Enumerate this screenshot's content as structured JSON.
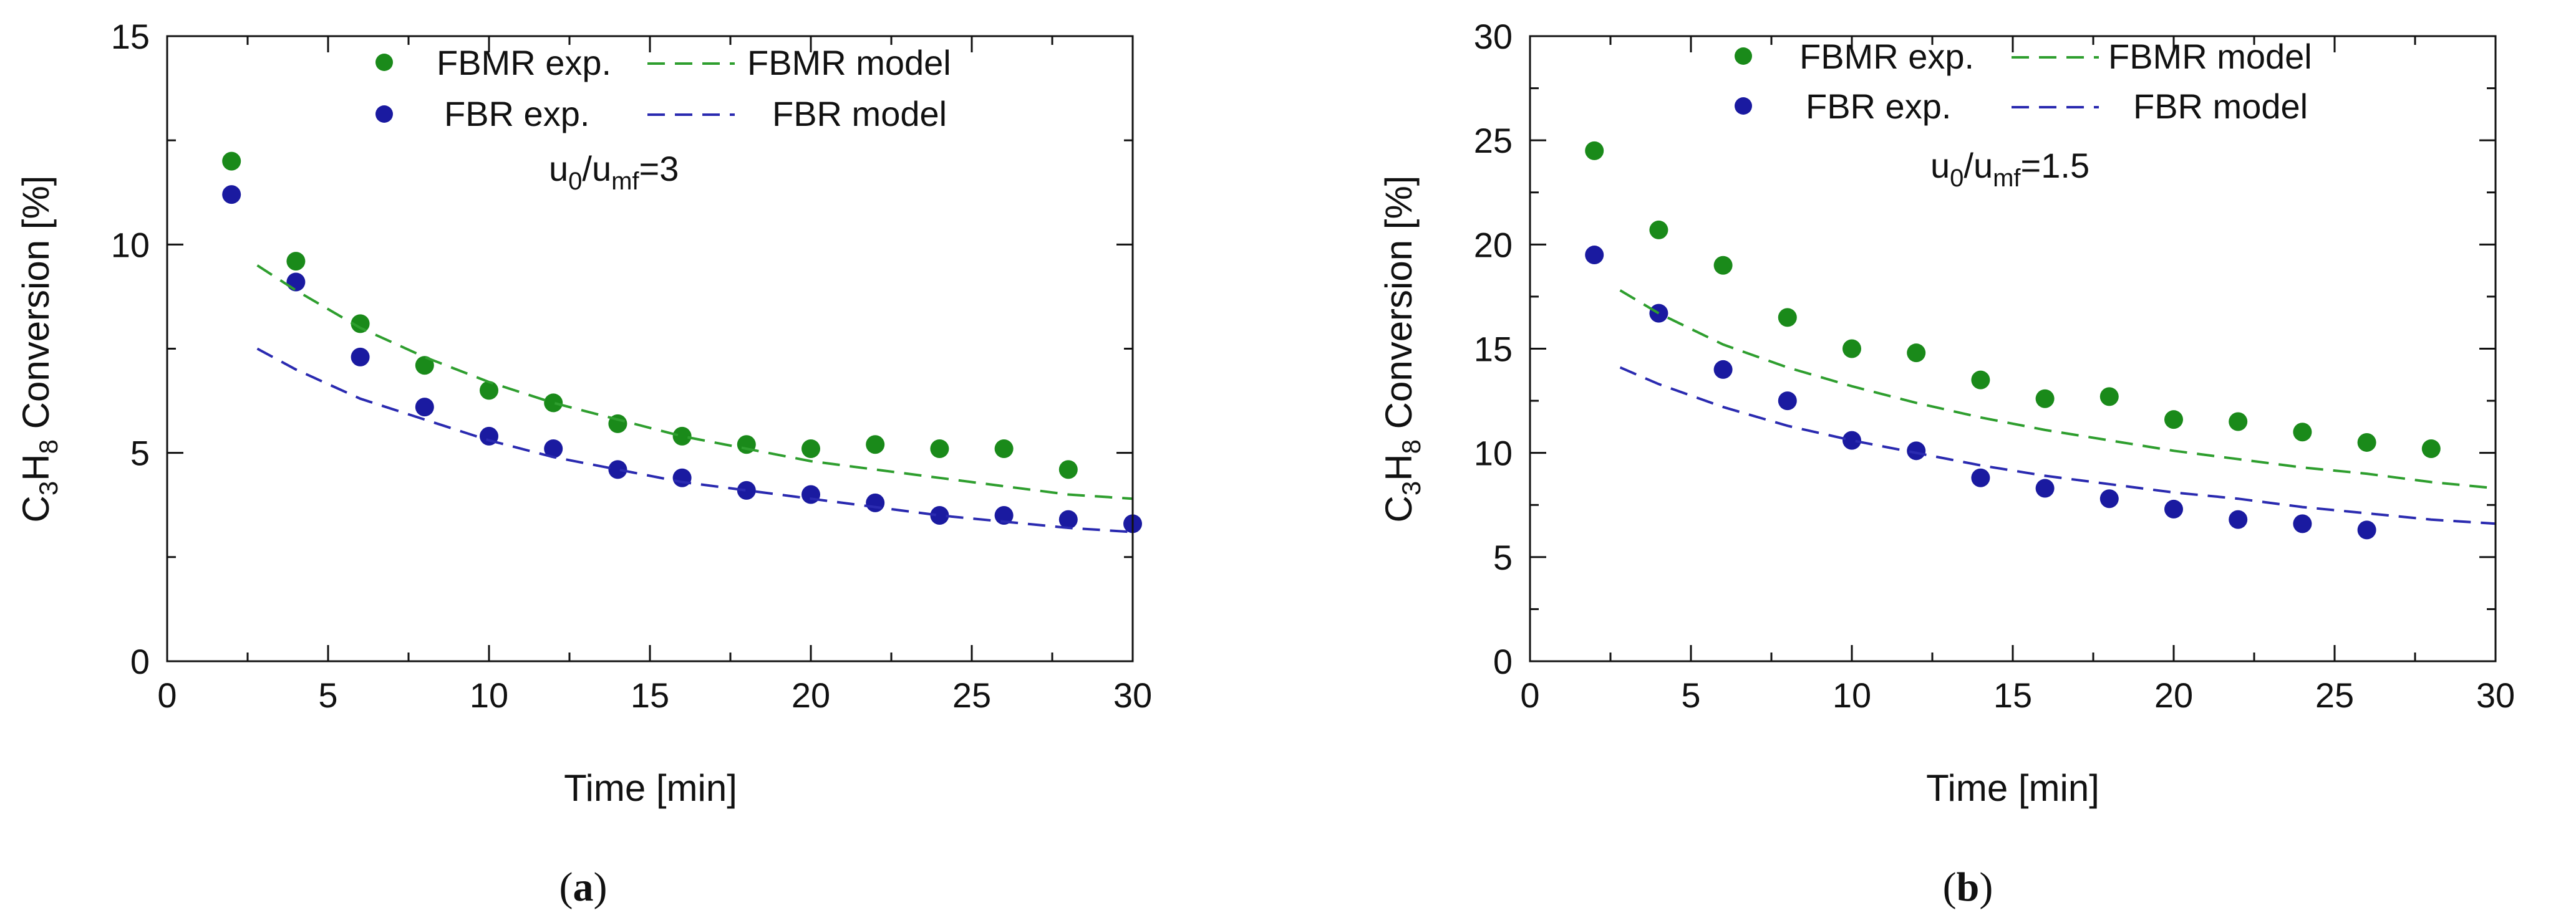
{
  "chart_data": [
    {
      "type": "scatter",
      "panel_label": "a",
      "xlabel": "Time [min]",
      "ylabel": {
        "base": "C",
        "sub1": "3",
        "mid": "H",
        "sub2": "8",
        "tail": " Conversion [%]"
      },
      "xlim": [
        0,
        30
      ],
      "ylim": [
        0,
        15
      ],
      "xticks": [
        0,
        5,
        10,
        15,
        20,
        25,
        30
      ],
      "yticks": [
        0,
        5,
        10,
        15
      ],
      "grid": false,
      "annotation": {
        "u": "u",
        "sub0": "0",
        "slash": "/u",
        "submf": "mf",
        "eq": "=3"
      },
      "legend": {
        "position": "top-center",
        "exp_fbmr": "FBMR exp.",
        "model_fbmr": "FBMR model",
        "exp_fbr": "FBR exp.",
        "model_fbr": "FBR model"
      },
      "series": [
        {
          "name": "FBMR exp.",
          "kind": "points",
          "color": "#1a8a1a",
          "x": [
            2,
            4,
            6,
            8,
            10,
            12,
            14,
            16,
            18,
            20,
            22,
            24,
            26,
            28
          ],
          "y": [
            12.0,
            9.6,
            8.1,
            7.1,
            6.5,
            6.2,
            5.7,
            5.4,
            5.2,
            5.1,
            5.2,
            5.1,
            5.1,
            4.6
          ]
        },
        {
          "name": "FBR exp.",
          "kind": "points",
          "color": "#1a1aa0",
          "x": [
            2,
            4,
            6,
            8,
            10,
            12,
            14,
            16,
            18,
            20,
            22,
            24,
            26,
            28,
            30
          ],
          "y": [
            11.2,
            9.1,
            7.3,
            6.1,
            5.4,
            5.1,
            4.6,
            4.4,
            4.1,
            4.0,
            3.8,
            3.5,
            3.5,
            3.4,
            3.3
          ]
        },
        {
          "name": "FBMR model",
          "kind": "dashed",
          "color": "#2e9e2e",
          "x": [
            2.8,
            4,
            6,
            8,
            10,
            12,
            14,
            16,
            18,
            20,
            22,
            24,
            26,
            28,
            30
          ],
          "y": [
            9.5,
            8.9,
            8.0,
            7.3,
            6.7,
            6.2,
            5.8,
            5.4,
            5.1,
            4.8,
            4.6,
            4.4,
            4.2,
            4.0,
            3.9
          ]
        },
        {
          "name": "FBR model",
          "kind": "dashed",
          "color": "#2a2ab0",
          "x": [
            2.8,
            4,
            6,
            8,
            10,
            12,
            14,
            16,
            18,
            20,
            22,
            24,
            26,
            28,
            30
          ],
          "y": [
            7.5,
            7.0,
            6.3,
            5.8,
            5.3,
            4.9,
            4.6,
            4.3,
            4.1,
            3.9,
            3.7,
            3.5,
            3.35,
            3.2,
            3.1
          ]
        }
      ]
    },
    {
      "type": "scatter",
      "panel_label": "b",
      "xlabel": "Time [min]",
      "ylabel": {
        "base": "C",
        "sub1": "3",
        "mid": "H",
        "sub2": "8",
        "tail": " Conversion [%]"
      },
      "xlim": [
        0,
        30
      ],
      "ylim": [
        0,
        30
      ],
      "xticks": [
        0,
        5,
        10,
        15,
        20,
        25,
        30
      ],
      "yticks": [
        0,
        5,
        10,
        15,
        20,
        25,
        30
      ],
      "grid": false,
      "annotation": {
        "u": "u",
        "sub0": "0",
        "slash": "/u",
        "submf": "mf",
        "eq": "=1.5"
      },
      "legend": {
        "position": "top-center",
        "exp_fbmr": "FBMR exp.",
        "model_fbmr": "FBMR model",
        "exp_fbr": "FBR exp.",
        "model_fbr": "FBR model"
      },
      "series": [
        {
          "name": "FBMR exp.",
          "kind": "points",
          "color": "#1a8a1a",
          "x": [
            2,
            4,
            6,
            8,
            10,
            12,
            14,
            16,
            18,
            20,
            22,
            24,
            26,
            28
          ],
          "y": [
            24.5,
            20.7,
            19.0,
            16.5,
            15.0,
            14.8,
            13.5,
            12.6,
            12.7,
            11.6,
            11.5,
            11.0,
            10.5,
            10.2
          ]
        },
        {
          "name": "FBR exp.",
          "kind": "points",
          "color": "#1a1aa0",
          "x": [
            2,
            4,
            6,
            8,
            10,
            12,
            14,
            16,
            18,
            20,
            22,
            24,
            26
          ],
          "y": [
            19.5,
            16.7,
            14.0,
            12.5,
            10.6,
            10.1,
            8.8,
            8.3,
            7.8,
            7.3,
            6.8,
            6.6,
            6.3
          ]
        },
        {
          "name": "FBMR model",
          "kind": "dashed",
          "color": "#2e9e2e",
          "x": [
            2.8,
            4,
            6,
            8,
            10,
            12,
            14,
            16,
            18,
            20,
            22,
            24,
            26,
            28,
            30
          ],
          "y": [
            17.8,
            16.7,
            15.2,
            14.1,
            13.2,
            12.4,
            11.7,
            11.1,
            10.6,
            10.1,
            9.7,
            9.3,
            9.0,
            8.6,
            8.3
          ]
        },
        {
          "name": "FBR model",
          "kind": "dashed",
          "color": "#2a2ab0",
          "x": [
            2.8,
            4,
            6,
            8,
            10,
            12,
            14,
            16,
            18,
            20,
            22,
            24,
            26,
            28,
            30
          ],
          "y": [
            14.1,
            13.3,
            12.2,
            11.3,
            10.6,
            10.0,
            9.4,
            8.9,
            8.5,
            8.1,
            7.8,
            7.4,
            7.1,
            6.8,
            6.6
          ]
        }
      ]
    }
  ]
}
